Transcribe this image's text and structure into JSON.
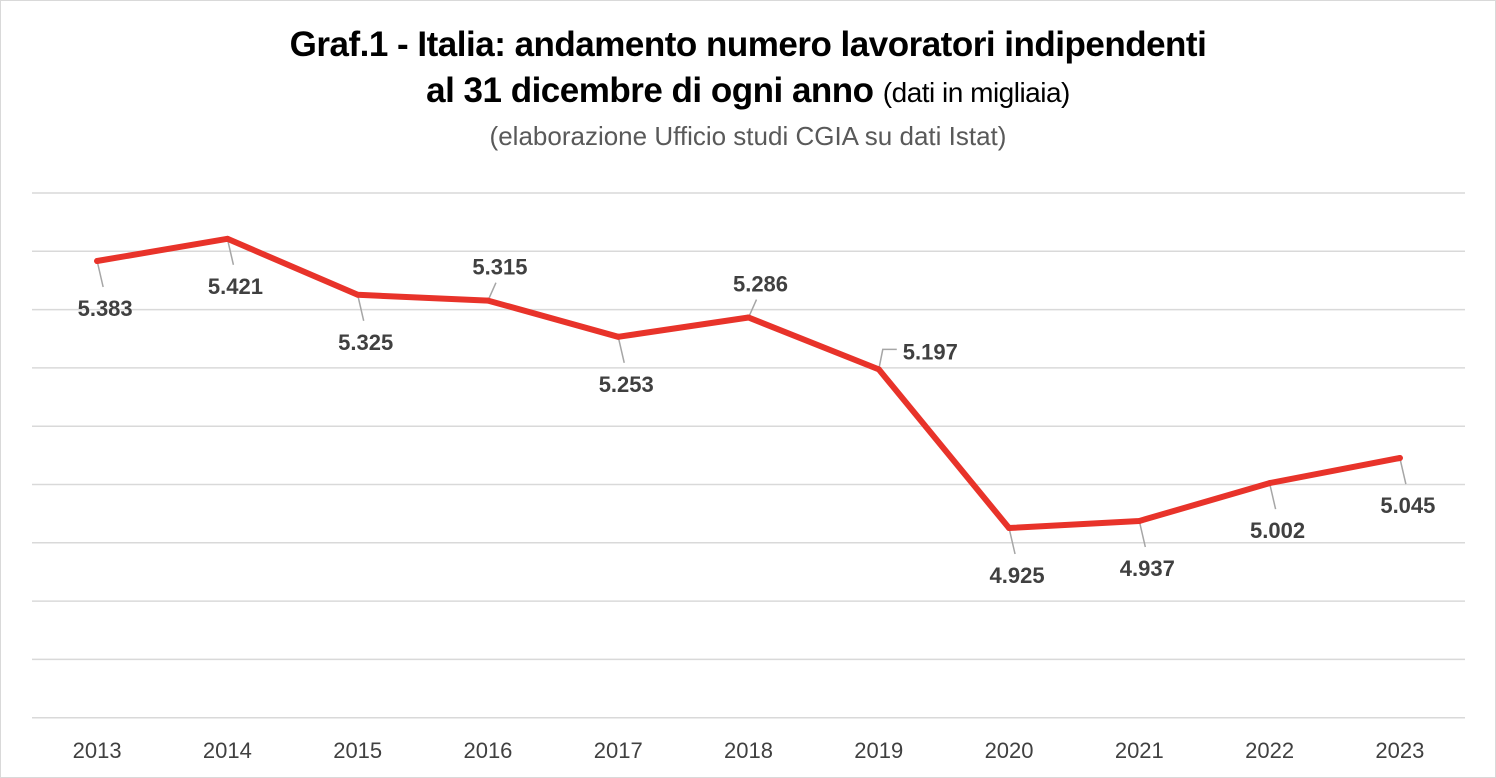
{
  "chart_data": {
    "type": "line",
    "title_main": "Graf.1 - Italia: andamento numero lavoratori indipendenti",
    "title_line2": "al 31 dicembre di ogni anno",
    "title_unit": "(dati in migliaia)",
    "subtitle": "(elaborazione Ufficio studi CGIA su dati Istat)",
    "categories": [
      "2013",
      "2014",
      "2015",
      "2016",
      "2017",
      "2018",
      "2019",
      "2020",
      "2021",
      "2022",
      "2023"
    ],
    "values": [
      5383,
      5421,
      5325,
      5315,
      5253,
      5286,
      5197,
      4925,
      4937,
      5002,
      5045
    ],
    "data_labels": [
      "5.383",
      "5.421",
      "5.325",
      "5.315",
      "5.253",
      "5.286",
      "5.197",
      "4.925",
      "4.937",
      "5.002",
      "5.045"
    ],
    "label_side": [
      "below",
      "below",
      "below",
      "above",
      "below",
      "above",
      "right",
      "below",
      "below",
      "below",
      "below"
    ],
    "gridlines": 10,
    "line_color": "#e8332a",
    "grid": true,
    "legend": "none"
  }
}
